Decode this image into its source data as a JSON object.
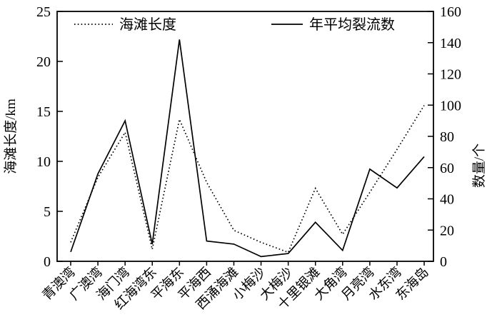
{
  "figure": {
    "background": "#ffffff",
    "line_color": "#000000"
  },
  "chart_data": {
    "type": "line",
    "categories": [
      "青澳湾",
      "广澳湾",
      "海门湾",
      "红海湾东",
      "平海东",
      "平海西",
      "西涌海滩",
      "小梅沙",
      "大梅沙",
      "十里银滩",
      "大角湾",
      "月亮湾",
      "水东湾",
      "东海岛"
    ],
    "series": [
      {
        "name": "海滩长度",
        "axis": "left",
        "line_style": "dotted",
        "unit": "km",
        "values": [
          1.9,
          8.4,
          12.9,
          1.2,
          14.2,
          7.9,
          3.1,
          1.9,
          0.9,
          7.3,
          2.7,
          6.9,
          11.2,
          15.6
        ]
      },
      {
        "name": "年平均裂流数",
        "axis": "right",
        "line_style": "solid",
        "unit": "个",
        "values": [
          6,
          56,
          90,
          11,
          142,
          13,
          11,
          3,
          5,
          25,
          7,
          59,
          47,
          67
        ]
      }
    ],
    "left_axis": {
      "label": "海滩长度/km",
      "min": 0,
      "max": 25,
      "ticks": [
        0,
        5,
        10,
        15,
        20,
        25
      ]
    },
    "right_axis": {
      "label": "数量/个",
      "min": 0,
      "max": 160,
      "ticks": [
        0,
        20,
        40,
        60,
        80,
        100,
        120,
        140,
        160
      ]
    },
    "x_axis": {
      "tick_label_rotation": -45
    },
    "grid": false,
    "legend_position": "top-inside"
  }
}
